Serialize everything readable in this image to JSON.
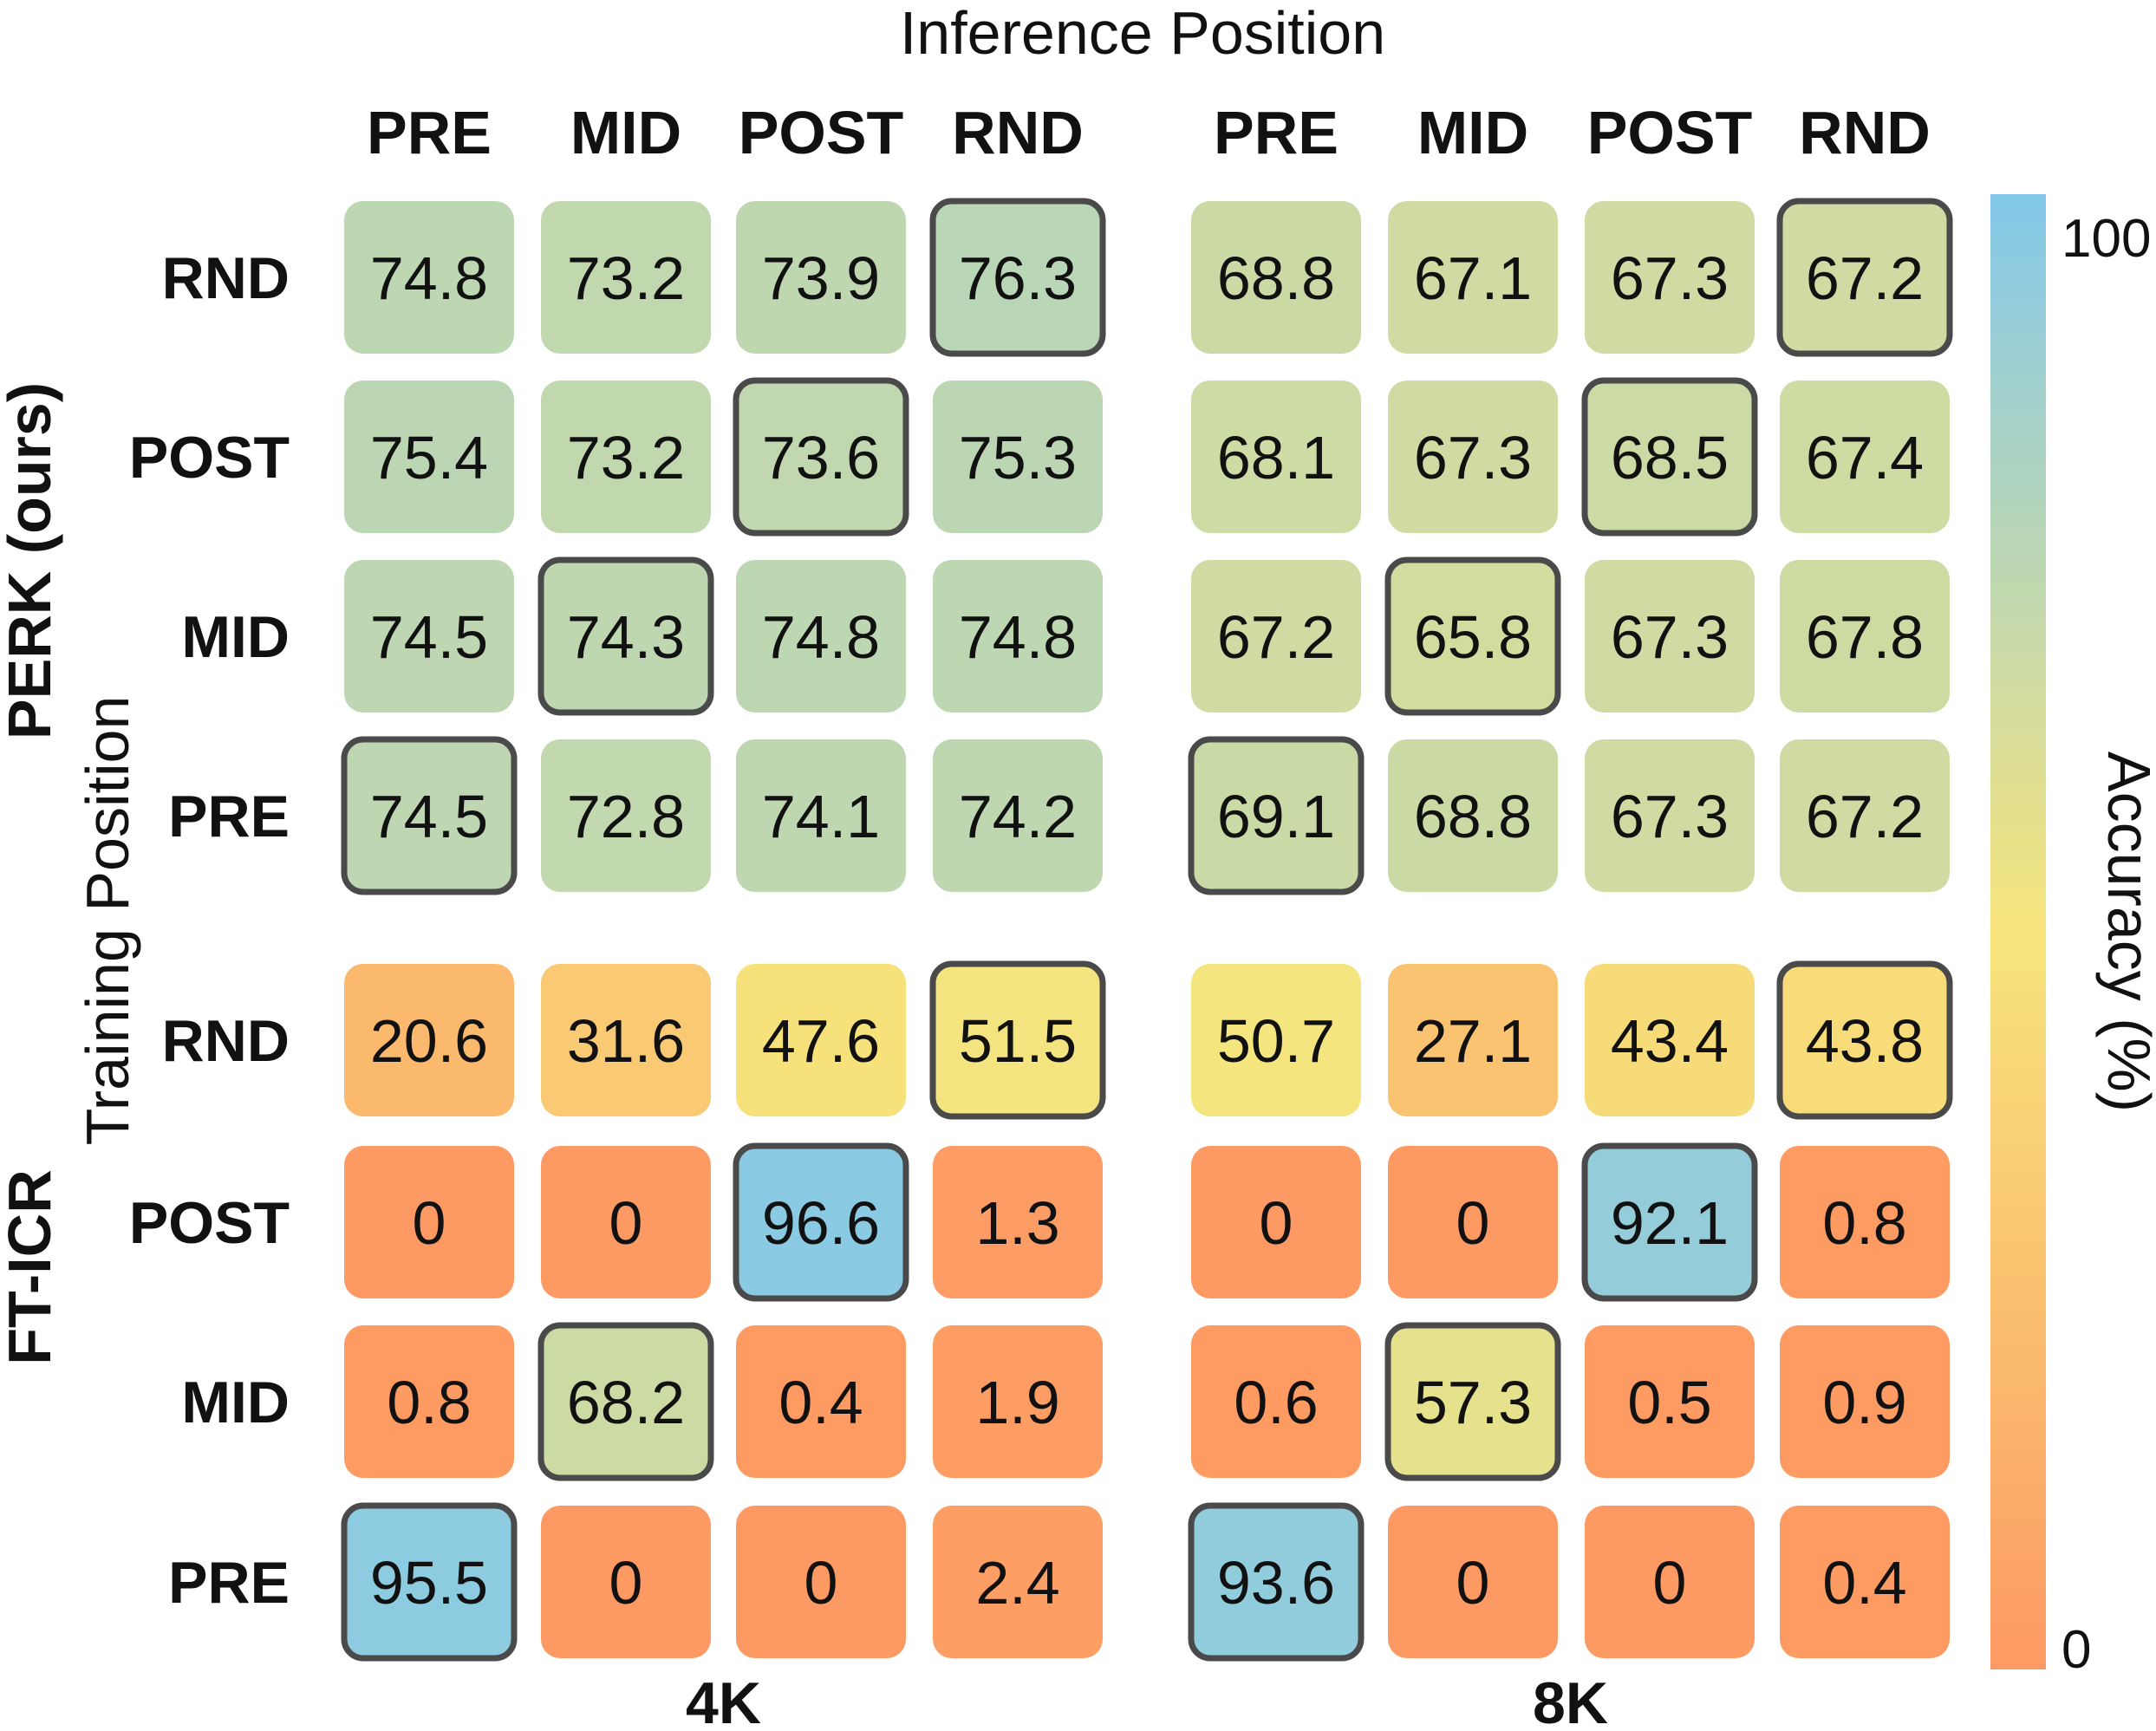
{
  "chart_data": {
    "type": "heatmap",
    "title": "Inference Position",
    "ylabel": "Training Position",
    "colorbar": {
      "label": "Accuracy (%)",
      "min": 0,
      "max": 100,
      "tick_max": "100",
      "tick_min": "0"
    },
    "colors": {
      "low": "#fd9a63",
      "mid": "#f7e57c",
      "high": "#82c8ea",
      "highlight_border": "#4a4a4a"
    },
    "x_categories": [
      "PRE",
      "MID",
      "POST",
      "RND"
    ],
    "contexts": [
      "4K",
      "8K"
    ],
    "row_groups": [
      {
        "name": "PERK (ours)",
        "rows": [
          "RND",
          "POST",
          "MID",
          "PRE"
        ],
        "values": {
          "4K": [
            [
              74.8,
              73.2,
              73.9,
              76.3
            ],
            [
              75.4,
              73.2,
              73.6,
              75.3
            ],
            [
              74.5,
              74.3,
              74.8,
              74.8
            ],
            [
              74.5,
              72.8,
              74.1,
              74.2
            ]
          ],
          "8K": [
            [
              68.8,
              67.1,
              67.3,
              67.2
            ],
            [
              68.1,
              67.3,
              68.5,
              67.4
            ],
            [
              67.2,
              65.8,
              67.3,
              67.8
            ],
            [
              69.1,
              68.8,
              67.3,
              67.2
            ]
          ]
        }
      },
      {
        "name": "FT-ICR",
        "rows": [
          "RND",
          "POST",
          "MID",
          "PRE"
        ],
        "values": {
          "4K": [
            [
              20.6,
              31.6,
              47.6,
              51.5
            ],
            [
              0,
              0,
              96.6,
              1.3
            ],
            [
              0.8,
              68.2,
              0.4,
              1.9
            ],
            [
              95.5,
              0,
              0,
              2.4
            ]
          ],
          "8K": [
            [
              50.7,
              27.1,
              43.4,
              43.8
            ],
            [
              0,
              0,
              92.1,
              0.8
            ],
            [
              0.6,
              57.3,
              0.5,
              0.9
            ],
            [
              93.6,
              0,
              0,
              0.4
            ]
          ]
        }
      }
    ],
    "highlight": "matching training and inference position"
  }
}
